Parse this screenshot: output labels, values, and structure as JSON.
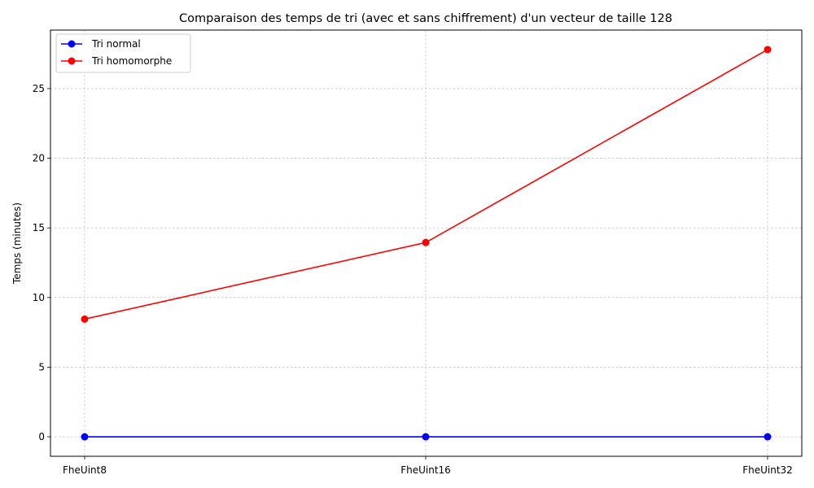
{
  "chart_data": {
    "type": "line",
    "title": "Comparaison des temps de tri (avec et sans chiffrement) d'un vecteur de taille 128",
    "xlabel": "",
    "ylabel": "Temps (minutes)",
    "categories": [
      "FheUint8",
      "FheUint16",
      "FheUint32"
    ],
    "ylim": [
      -1.4,
      29.2
    ],
    "yticks": [
      0,
      5,
      10,
      15,
      20,
      25
    ],
    "grid": true,
    "legend_position": "top-left",
    "series": [
      {
        "name": "Tri normal",
        "color": "#0000ff",
        "marker": "circle",
        "values": [
          0.0,
          0.0,
          0.0
        ]
      },
      {
        "name": "Tri homomorphe",
        "color": "#ff0000",
        "marker": "circle",
        "values": [
          8.45,
          13.95,
          27.8
        ]
      }
    ]
  }
}
